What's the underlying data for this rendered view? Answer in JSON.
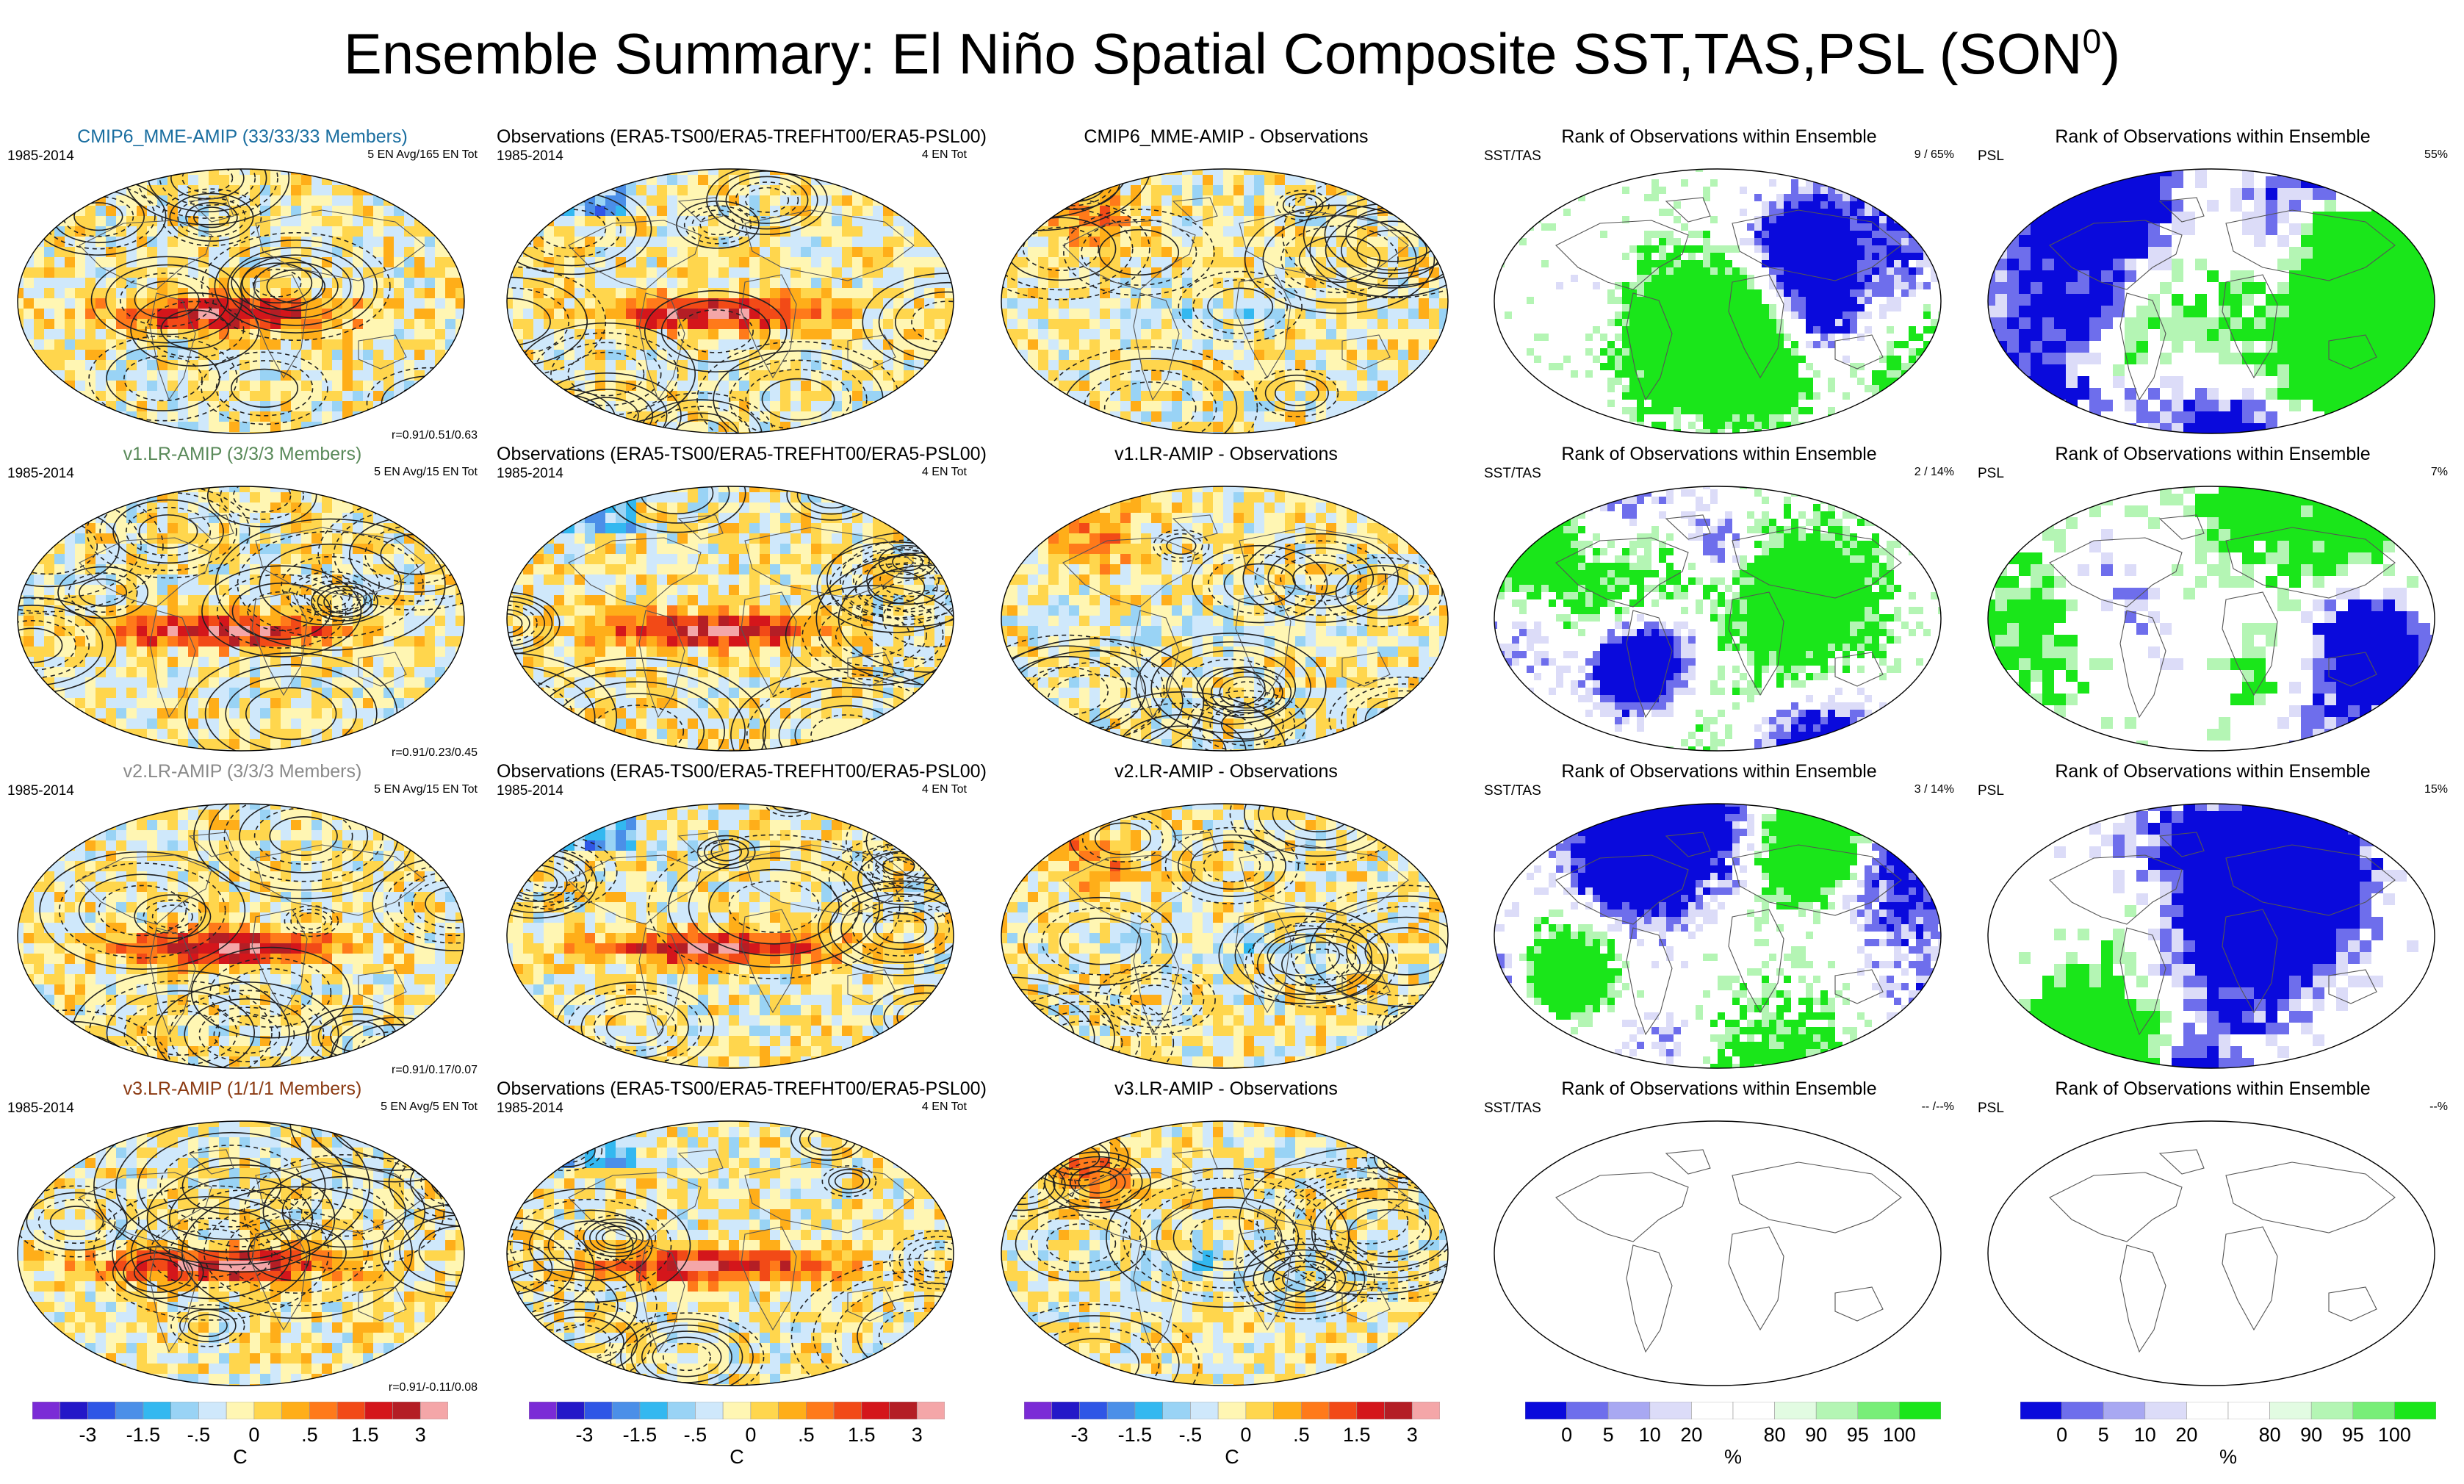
{
  "figure": {
    "title": "Ensemble Summary: El Niño Spatial Composite SST,TAS,PSL (SON",
    "title_sup": "0",
    "title_close": ")"
  },
  "chart_data": {
    "type": "heatmap",
    "layout": "4 rows x 5 columns of global map panels",
    "rows": [
      {
        "panels": [
          {
            "title": "CMIP6_MME-AMIP (33/33/33 Members)",
            "title_color": "#1a6ea0",
            "left_tag": "1985-2014",
            "right_tag": "5 EN Avg/165 EN Tot",
            "corr": "r=0.91/0.51/0.63",
            "kind": "model"
          },
          {
            "title": "Observations (ERA5-TS00/ERA5-TREFHT00/ERA5-PSL00)",
            "title_color": "#000000",
            "left_tag": "1985-2014",
            "right_tag": "4 EN Tot",
            "corr": "",
            "kind": "obs"
          },
          {
            "title": "CMIP6_MME-AMIP - Observations",
            "title_color": "#000000",
            "left_tag": "",
            "right_tag": "",
            "corr": "",
            "kind": "diff"
          },
          {
            "title": "Rank of Observations within Ensemble",
            "title_color": "#000000",
            "left_tag": "SST/TAS",
            "right_tag": "9 / 65%",
            "corr": "",
            "kind": "rank"
          },
          {
            "title": "Rank of Observations within Ensemble",
            "title_color": "#000000",
            "left_tag": "PSL",
            "right_tag": "55%",
            "corr": "",
            "kind": "rankpsl"
          }
        ]
      },
      {
        "panels": [
          {
            "title": "v1.LR-AMIP (3/3/3 Members)",
            "title_color": "#5a8a5a",
            "left_tag": "1985-2014",
            "right_tag": "5 EN Avg/15 EN Tot",
            "corr": "r=0.91/0.23/0.45",
            "kind": "model"
          },
          {
            "title": "Observations (ERA5-TS00/ERA5-TREFHT00/ERA5-PSL00)",
            "title_color": "#000000",
            "left_tag": "1985-2014",
            "right_tag": "4 EN Tot",
            "corr": "",
            "kind": "obs"
          },
          {
            "title": "v1.LR-AMIP - Observations",
            "title_color": "#000000",
            "left_tag": "",
            "right_tag": "",
            "corr": "",
            "kind": "diff"
          },
          {
            "title": "Rank of Observations within Ensemble",
            "title_color": "#000000",
            "left_tag": "SST/TAS",
            "right_tag": "2 / 14%",
            "corr": "",
            "kind": "rank"
          },
          {
            "title": "Rank of Observations within Ensemble",
            "title_color": "#000000",
            "left_tag": "PSL",
            "right_tag": "7%",
            "corr": "",
            "kind": "rankpsl"
          }
        ]
      },
      {
        "panels": [
          {
            "title": "v2.LR-AMIP (3/3/3 Members)",
            "title_color": "#8a8a8a",
            "left_tag": "1985-2014",
            "right_tag": "5 EN Avg/15 EN Tot",
            "corr": "r=0.91/0.17/0.07",
            "kind": "model"
          },
          {
            "title": "Observations (ERA5-TS00/ERA5-TREFHT00/ERA5-PSL00)",
            "title_color": "#000000",
            "left_tag": "1985-2014",
            "right_tag": "4 EN Tot",
            "corr": "",
            "kind": "obs"
          },
          {
            "title": "v2.LR-AMIP - Observations",
            "title_color": "#000000",
            "left_tag": "",
            "right_tag": "",
            "corr": "",
            "kind": "diff"
          },
          {
            "title": "Rank of Observations within Ensemble",
            "title_color": "#000000",
            "left_tag": "SST/TAS",
            "right_tag": "3 / 14%",
            "corr": "",
            "kind": "rank"
          },
          {
            "title": "Rank of Observations within Ensemble",
            "title_color": "#000000",
            "left_tag": "PSL",
            "right_tag": "15%",
            "corr": "",
            "kind": "rankpsl"
          }
        ]
      },
      {
        "panels": [
          {
            "title": "v3.LR-AMIP (1/1/1 Members)",
            "title_color": "#8b3a12",
            "left_tag": "1985-2014",
            "right_tag": "5 EN Avg/5 EN Tot",
            "corr": "r=0.91/-0.11/0.08",
            "kind": "model"
          },
          {
            "title": "Observations (ERA5-TS00/ERA5-TREFHT00/ERA5-PSL00)",
            "title_color": "#000000",
            "left_tag": "1985-2014",
            "right_tag": "4 EN Tot",
            "corr": "",
            "kind": "obs"
          },
          {
            "title": "v3.LR-AMIP - Observations",
            "title_color": "#000000",
            "left_tag": "",
            "right_tag": "",
            "corr": "",
            "kind": "diff"
          },
          {
            "title": "Rank of Observations within Ensemble",
            "title_color": "#000000",
            "left_tag": "SST/TAS",
            "right_tag": "-- /--%",
            "corr": "",
            "kind": "empty"
          },
          {
            "title": "Rank of Observations within Ensemble",
            "title_color": "#000000",
            "left_tag": "PSL",
            "right_tag": "--%",
            "corr": "",
            "kind": "empty"
          }
        ]
      }
    ],
    "colorbars": [
      {
        "kind": "temp",
        "unit": "C",
        "ticks": [
          "-3",
          "-1.5",
          "-.5",
          "0",
          ".5",
          "1.5",
          "3"
        ],
        "colors": [
          "#7b2bd6",
          "#2418c8",
          "#2f56e6",
          "#4b8fe8",
          "#33b8f0",
          "#99d3f5",
          "#cfe8fb",
          "#fff6b3",
          "#ffd64d",
          "#ffae19",
          "#ff7a1a",
          "#f24a17",
          "#d4161b",
          "#b41e25",
          "#f4a6a8"
        ]
      },
      {
        "kind": "temp",
        "unit": "C",
        "ticks": [
          "-3",
          "-1.5",
          "-.5",
          "0",
          ".5",
          "1.5",
          "3"
        ],
        "colors": [
          "#7b2bd6",
          "#2418c8",
          "#2f56e6",
          "#4b8fe8",
          "#33b8f0",
          "#99d3f5",
          "#cfe8fb",
          "#fff6b3",
          "#ffd64d",
          "#ffae19",
          "#ff7a1a",
          "#f24a17",
          "#d4161b",
          "#b41e25",
          "#f4a6a8"
        ]
      },
      {
        "kind": "temp",
        "unit": "C",
        "ticks": [
          "-3",
          "-1.5",
          "-.5",
          "0",
          ".5",
          "1.5",
          "3"
        ],
        "colors": [
          "#7b2bd6",
          "#2418c8",
          "#2f56e6",
          "#4b8fe8",
          "#33b8f0",
          "#99d3f5",
          "#cfe8fb",
          "#fff6b3",
          "#ffd64d",
          "#ffae19",
          "#ff7a1a",
          "#f24a17",
          "#d4161b",
          "#b41e25",
          "#f4a6a8"
        ]
      },
      {
        "kind": "rank",
        "unit": "%",
        "ticks": [
          "0",
          "5",
          "10",
          "20",
          "80",
          "90",
          "95",
          "100"
        ],
        "colors": [
          "#0a0adc",
          "#6e6eec",
          "#a8a8f2",
          "#dcdcf8",
          "#ffffff",
          "#ffffff",
          "#e2fbe2",
          "#b4f5b4",
          "#78ee78",
          "#1ae61a"
        ]
      },
      {
        "kind": "rank",
        "unit": "%",
        "ticks": [
          "0",
          "5",
          "10",
          "20",
          "80",
          "90",
          "95",
          "100"
        ],
        "colors": [
          "#0a0adc",
          "#6e6eec",
          "#a8a8f2",
          "#dcdcf8",
          "#ffffff",
          "#ffffff",
          "#e2fbe2",
          "#b4f5b4",
          "#78ee78",
          "#1ae61a"
        ]
      }
    ]
  }
}
